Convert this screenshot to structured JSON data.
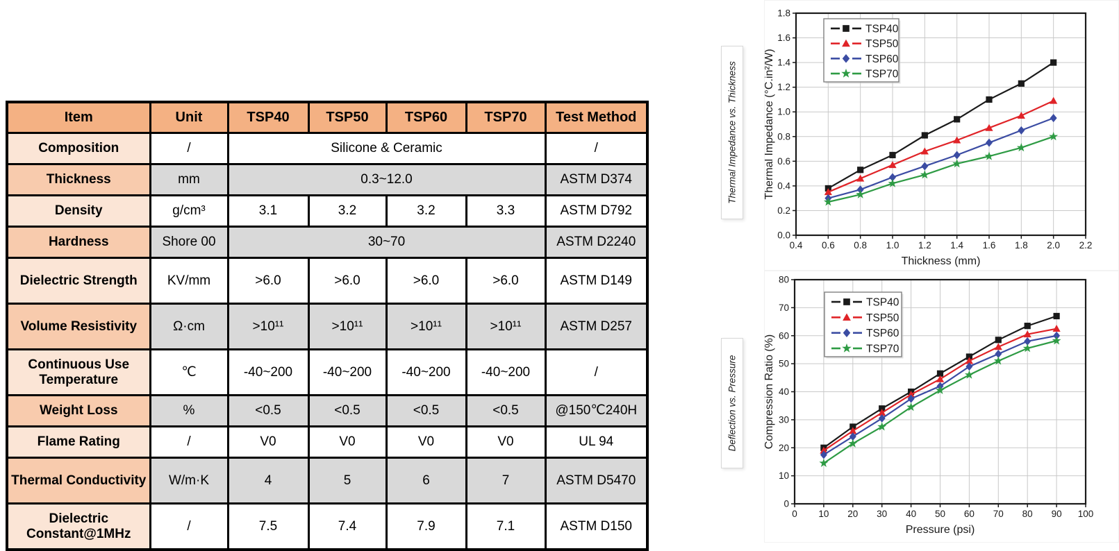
{
  "table": {
    "headers": [
      "Item",
      "Unit",
      "TSP40",
      "TSP50",
      "TSP60",
      "TSP70",
      "Test Method"
    ],
    "rows": [
      {
        "item": "Composition",
        "unit": "/",
        "merged": true,
        "values": [
          "Silicone & Ceramic"
        ],
        "test": "/"
      },
      {
        "item": "Thickness",
        "unit": "mm",
        "merged": true,
        "values": [
          "0.3~12.0"
        ],
        "test": "ASTM D374"
      },
      {
        "item": "Density",
        "unit": "g/cm³",
        "merged": false,
        "values": [
          "3.1",
          "3.2",
          "3.2",
          "3.3"
        ],
        "test": "ASTM D792"
      },
      {
        "item": "Hardness",
        "unit": "Shore 00",
        "merged": true,
        "values": [
          "30~70"
        ],
        "test": "ASTM D2240"
      },
      {
        "item": "Dielectric Strength",
        "unit": "KV/mm",
        "merged": false,
        "values": [
          ">6.0",
          ">6.0",
          ">6.0",
          ">6.0"
        ],
        "test": "ASTM D149"
      },
      {
        "item": "Volume Resistivity",
        "unit": "Ω·cm",
        "merged": false,
        "values": [
          ">10¹¹",
          ">10¹¹",
          ">10¹¹",
          ">10¹¹"
        ],
        "test": "ASTM D257"
      },
      {
        "item": "Continuous Use Temperature",
        "unit": "℃",
        "merged": false,
        "values": [
          "-40~200",
          "-40~200",
          "-40~200",
          "-40~200"
        ],
        "test": "/"
      },
      {
        "item": "Weight Loss",
        "unit": "%",
        "merged": false,
        "values": [
          "<0.5",
          "<0.5",
          "<0.5",
          "<0.5"
        ],
        "test": "@150℃240H"
      },
      {
        "item": "Flame Rating",
        "unit": "/",
        "merged": false,
        "values": [
          "V0",
          "V0",
          "V0",
          "V0"
        ],
        "test": "UL 94"
      },
      {
        "item": "Thermal Conductivity",
        "unit": "W/m·K",
        "merged": false,
        "values": [
          "4",
          "5",
          "6",
          "7"
        ],
        "test": "ASTM D5470"
      },
      {
        "item": "Dielectric Constant@1MHz",
        "unit": "/",
        "merged": false,
        "values": [
          "7.5",
          "7.4",
          "7.9",
          "7.1"
        ],
        "test": "ASTM D150"
      }
    ],
    "colors": {
      "header_bg": "#F4B183",
      "item_odd_bg": "#FBE5D6",
      "item_even_bg": "#F8CBAD",
      "cell_even_bg": "#D9D9D9",
      "cell_odd_bg": "#FFFFFF",
      "border": "#000000"
    }
  },
  "captions": {
    "top": "Thermal Impedance vs. Thickness",
    "bottom": "Deflection vs. Pressure"
  },
  "chart_data": [
    {
      "type": "line",
      "title": "",
      "xlabel": "Thickness (mm)",
      "ylabel": "Thermal Impedance (°C.in²/W)",
      "xlim": [
        0.4,
        2.2
      ],
      "ylim": [
        0.0,
        1.8
      ],
      "xticks": [
        0.4,
        0.6,
        0.8,
        1.0,
        1.2,
        1.4,
        1.6,
        1.8,
        2.0,
        2.2
      ],
      "yticks": [
        0.0,
        0.2,
        0.4,
        0.6,
        0.8,
        1.0,
        1.2,
        1.4,
        1.6,
        1.8
      ],
      "x_decimals": 1,
      "y_decimals": 1,
      "grid": true,
      "legend_position": "top-left",
      "x": [
        0.6,
        0.8,
        1.0,
        1.2,
        1.4,
        1.6,
        1.8,
        2.0
      ],
      "series": [
        {
          "name": "TSP40",
          "color": "#1a1a1a",
          "marker": "square",
          "values": [
            0.38,
            0.53,
            0.65,
            0.81,
            0.94,
            1.1,
            1.23,
            1.4
          ]
        },
        {
          "name": "TSP50",
          "color": "#e02428",
          "marker": "triangle",
          "values": [
            0.35,
            0.46,
            0.57,
            0.68,
            0.77,
            0.87,
            0.97,
            1.09
          ]
        },
        {
          "name": "TSP60",
          "color": "#3b4ca3",
          "marker": "diamond",
          "values": [
            0.3,
            0.37,
            0.47,
            0.56,
            0.65,
            0.75,
            0.85,
            0.95
          ]
        },
        {
          "name": "TSP70",
          "color": "#2e9b44",
          "marker": "star",
          "values": [
            0.27,
            0.33,
            0.42,
            0.49,
            0.58,
            0.64,
            0.71,
            0.8
          ]
        }
      ]
    },
    {
      "type": "line",
      "title": "",
      "xlabel": "Pressure (psi)",
      "ylabel": "Compression Ratio (%)",
      "xlim": [
        0,
        100
      ],
      "ylim": [
        0,
        80
      ],
      "xticks": [
        0,
        10,
        20,
        30,
        40,
        50,
        60,
        70,
        80,
        90,
        100
      ],
      "yticks": [
        0,
        10,
        20,
        30,
        40,
        50,
        60,
        70,
        80
      ],
      "x_decimals": 0,
      "y_decimals": 0,
      "grid": true,
      "legend_position": "top-left",
      "x": [
        10,
        20,
        30,
        40,
        50,
        60,
        70,
        80,
        90
      ],
      "series": [
        {
          "name": "TSP40",
          "color": "#1a1a1a",
          "marker": "square",
          "values": [
            20.0,
            27.5,
            34.0,
            40.0,
            46.5,
            52.5,
            58.5,
            63.5,
            67.0
          ]
        },
        {
          "name": "TSP50",
          "color": "#e02428",
          "marker": "triangle",
          "values": [
            19.0,
            26.0,
            32.5,
            39.0,
            44.5,
            51.0,
            56.0,
            60.5,
            62.5
          ]
        },
        {
          "name": "TSP60",
          "color": "#3b4ca3",
          "marker": "diamond",
          "values": [
            17.5,
            24.0,
            30.5,
            37.5,
            42.0,
            49.0,
            53.5,
            58.0,
            60.0
          ]
        },
        {
          "name": "TSP70",
          "color": "#2e9b44",
          "marker": "star",
          "values": [
            14.5,
            21.5,
            27.5,
            34.5,
            40.5,
            46.0,
            51.0,
            55.5,
            58.2
          ]
        }
      ]
    }
  ]
}
